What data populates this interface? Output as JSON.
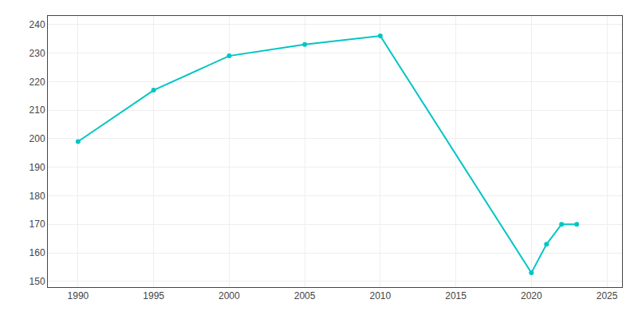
{
  "chart_data": {
    "type": "line",
    "x": [
      1990,
      1995,
      2000,
      2005,
      2010,
      2020,
      2021,
      2022,
      2023
    ],
    "values": [
      199,
      217,
      229,
      233,
      236,
      153,
      163,
      170,
      170
    ],
    "color": "#00C5C5",
    "marker": "circle",
    "xlim": [
      1988,
      2026
    ],
    "ylim": [
      148,
      243
    ],
    "xticks": [
      1990,
      1995,
      2000,
      2005,
      2010,
      2015,
      2020,
      2025
    ],
    "yticks": [
      150,
      160,
      170,
      180,
      190,
      200,
      210,
      220,
      230,
      240
    ],
    "grid": true
  }
}
